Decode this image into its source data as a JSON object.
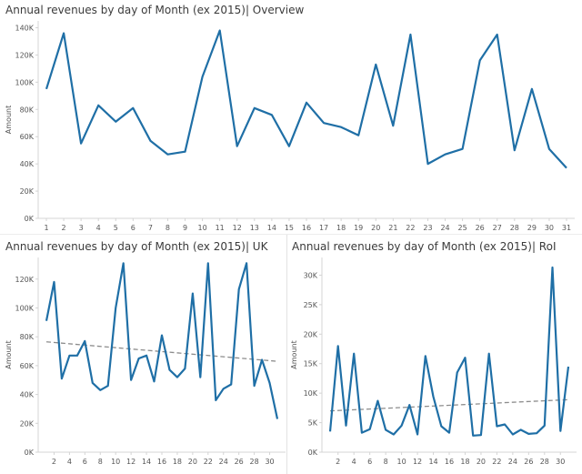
{
  "charts": {
    "overview": {
      "title": "Annual revenues by day of Month (ex 2015)| Overview"
    },
    "uk": {
      "title": "Annual revenues by day of Month (ex 2015)| UK"
    },
    "roi": {
      "title": "Annual revenues by day of Month (ex 2015)| RoI"
    }
  },
  "colors": {
    "line": "#1f6fa6",
    "trend": "#8c8c8c",
    "axis": "#d4d4d4",
    "grid": "#eeeeee",
    "tick_text": "#555555"
  },
  "chart_data": [
    {
      "id": "overview",
      "type": "line",
      "title": "Annual revenues by day of Month (ex 2015)| Overview",
      "xlabel": "",
      "ylabel": "Amount",
      "x": [
        1,
        2,
        3,
        4,
        5,
        6,
        7,
        8,
        9,
        10,
        11,
        12,
        13,
        14,
        15,
        16,
        17,
        18,
        19,
        20,
        21,
        22,
        23,
        24,
        25,
        26,
        27,
        28,
        29,
        30,
        31
      ],
      "x_tick_labels": [
        "1",
        "2",
        "3",
        "4",
        "5",
        "6",
        "7",
        "8",
        "9",
        "10",
        "11",
        "12",
        "13",
        "14",
        "15",
        "16",
        "17",
        "18",
        "19",
        "20",
        "21",
        "22",
        "23",
        "24",
        "25",
        "26",
        "27",
        "28",
        "29",
        "30",
        "31"
      ],
      "series": [
        {
          "values": [
            95000,
            136000,
            55000,
            83000,
            71000,
            81000,
            57000,
            47000,
            49000,
            104000,
            138000,
            53000,
            81000,
            76000,
            53000,
            85000,
            70000,
            67000,
            61000,
            113000,
            68000,
            135000,
            40000,
            47000,
            51000,
            116000,
            135000,
            50000,
            95000,
            51000,
            37000
          ]
        }
      ],
      "ylim": [
        0,
        145000
      ],
      "yticks": [
        0,
        20000,
        40000,
        60000,
        80000,
        100000,
        120000,
        140000
      ],
      "ytick_labels": [
        "0K",
        "20K",
        "40K",
        "60K",
        "80K",
        "100K",
        "120K",
        "140K"
      ],
      "trend_line": false
    },
    {
      "id": "uk",
      "type": "line",
      "title": "Annual revenues by day of Month (ex 2015)| UK",
      "xlabel": "",
      "ylabel": "Amount",
      "x": [
        1,
        2,
        3,
        4,
        5,
        6,
        7,
        8,
        9,
        10,
        11,
        12,
        13,
        14,
        15,
        16,
        17,
        18,
        19,
        20,
        21,
        22,
        23,
        24,
        25,
        26,
        27,
        28,
        29,
        30,
        31
      ],
      "x_tick_labels": [
        "2",
        "4",
        "6",
        "8",
        "10",
        "12",
        "14",
        "16",
        "18",
        "20",
        "22",
        "24",
        "26",
        "28",
        "30"
      ],
      "x_tick_values": [
        2,
        4,
        6,
        8,
        10,
        12,
        14,
        16,
        18,
        20,
        22,
        24,
        26,
        28,
        30
      ],
      "series": [
        {
          "values": [
            91000,
            118000,
            51000,
            67000,
            67000,
            77000,
            48000,
            43000,
            46000,
            100000,
            131000,
            50000,
            65000,
            67000,
            49000,
            81000,
            57000,
            52000,
            58000,
            110000,
            52000,
            131000,
            36000,
            44000,
            47000,
            113000,
            131000,
            46000,
            64000,
            48000,
            23000
          ]
        }
      ],
      "ylim": [
        0,
        135000
      ],
      "yticks": [
        0,
        20000,
        40000,
        60000,
        80000,
        100000,
        120000
      ],
      "ytick_labels": [
        "0K",
        "20K",
        "40K",
        "60K",
        "80K",
        "100K",
        "120K"
      ],
      "trend_line": {
        "y_start": 76500,
        "y_end": 63000
      }
    },
    {
      "id": "roi",
      "type": "line",
      "title": "Annual revenues by day of Month (ex 2015)| RoI",
      "xlabel": "",
      "ylabel": "Amount",
      "x": [
        1,
        2,
        3,
        4,
        5,
        6,
        7,
        8,
        9,
        10,
        11,
        12,
        13,
        14,
        15,
        16,
        17,
        18,
        19,
        20,
        21,
        22,
        23,
        24,
        25,
        26,
        27,
        28,
        29,
        30,
        31
      ],
      "x_tick_labels": [
        "2",
        "4",
        "6",
        "8",
        "10",
        "12",
        "14",
        "16",
        "18",
        "20",
        "22",
        "24",
        "26",
        "28",
        "30"
      ],
      "x_tick_values": [
        2,
        4,
        6,
        8,
        10,
        12,
        14,
        16,
        18,
        20,
        22,
        24,
        26,
        28,
        30
      ],
      "series": [
        {
          "values": [
            3500,
            18000,
            4500,
            16700,
            3300,
            3900,
            8700,
            3800,
            3000,
            4500,
            8000,
            3000,
            16300,
            9400,
            4400,
            3300,
            13500,
            16000,
            2800,
            2900,
            16700,
            4400,
            4700,
            3000,
            3800,
            3100,
            3200,
            4500,
            31300,
            3600,
            14500
          ]
        }
      ],
      "ylim": [
        0,
        33000
      ],
      "yticks": [
        0,
        5000,
        10000,
        15000,
        20000,
        25000,
        30000
      ],
      "ytick_labels": [
        "0K",
        "5K",
        "10K",
        "15K",
        "20K",
        "25K",
        "30K"
      ],
      "trend_line": {
        "y_start": 7000,
        "y_end": 8900
      }
    }
  ]
}
